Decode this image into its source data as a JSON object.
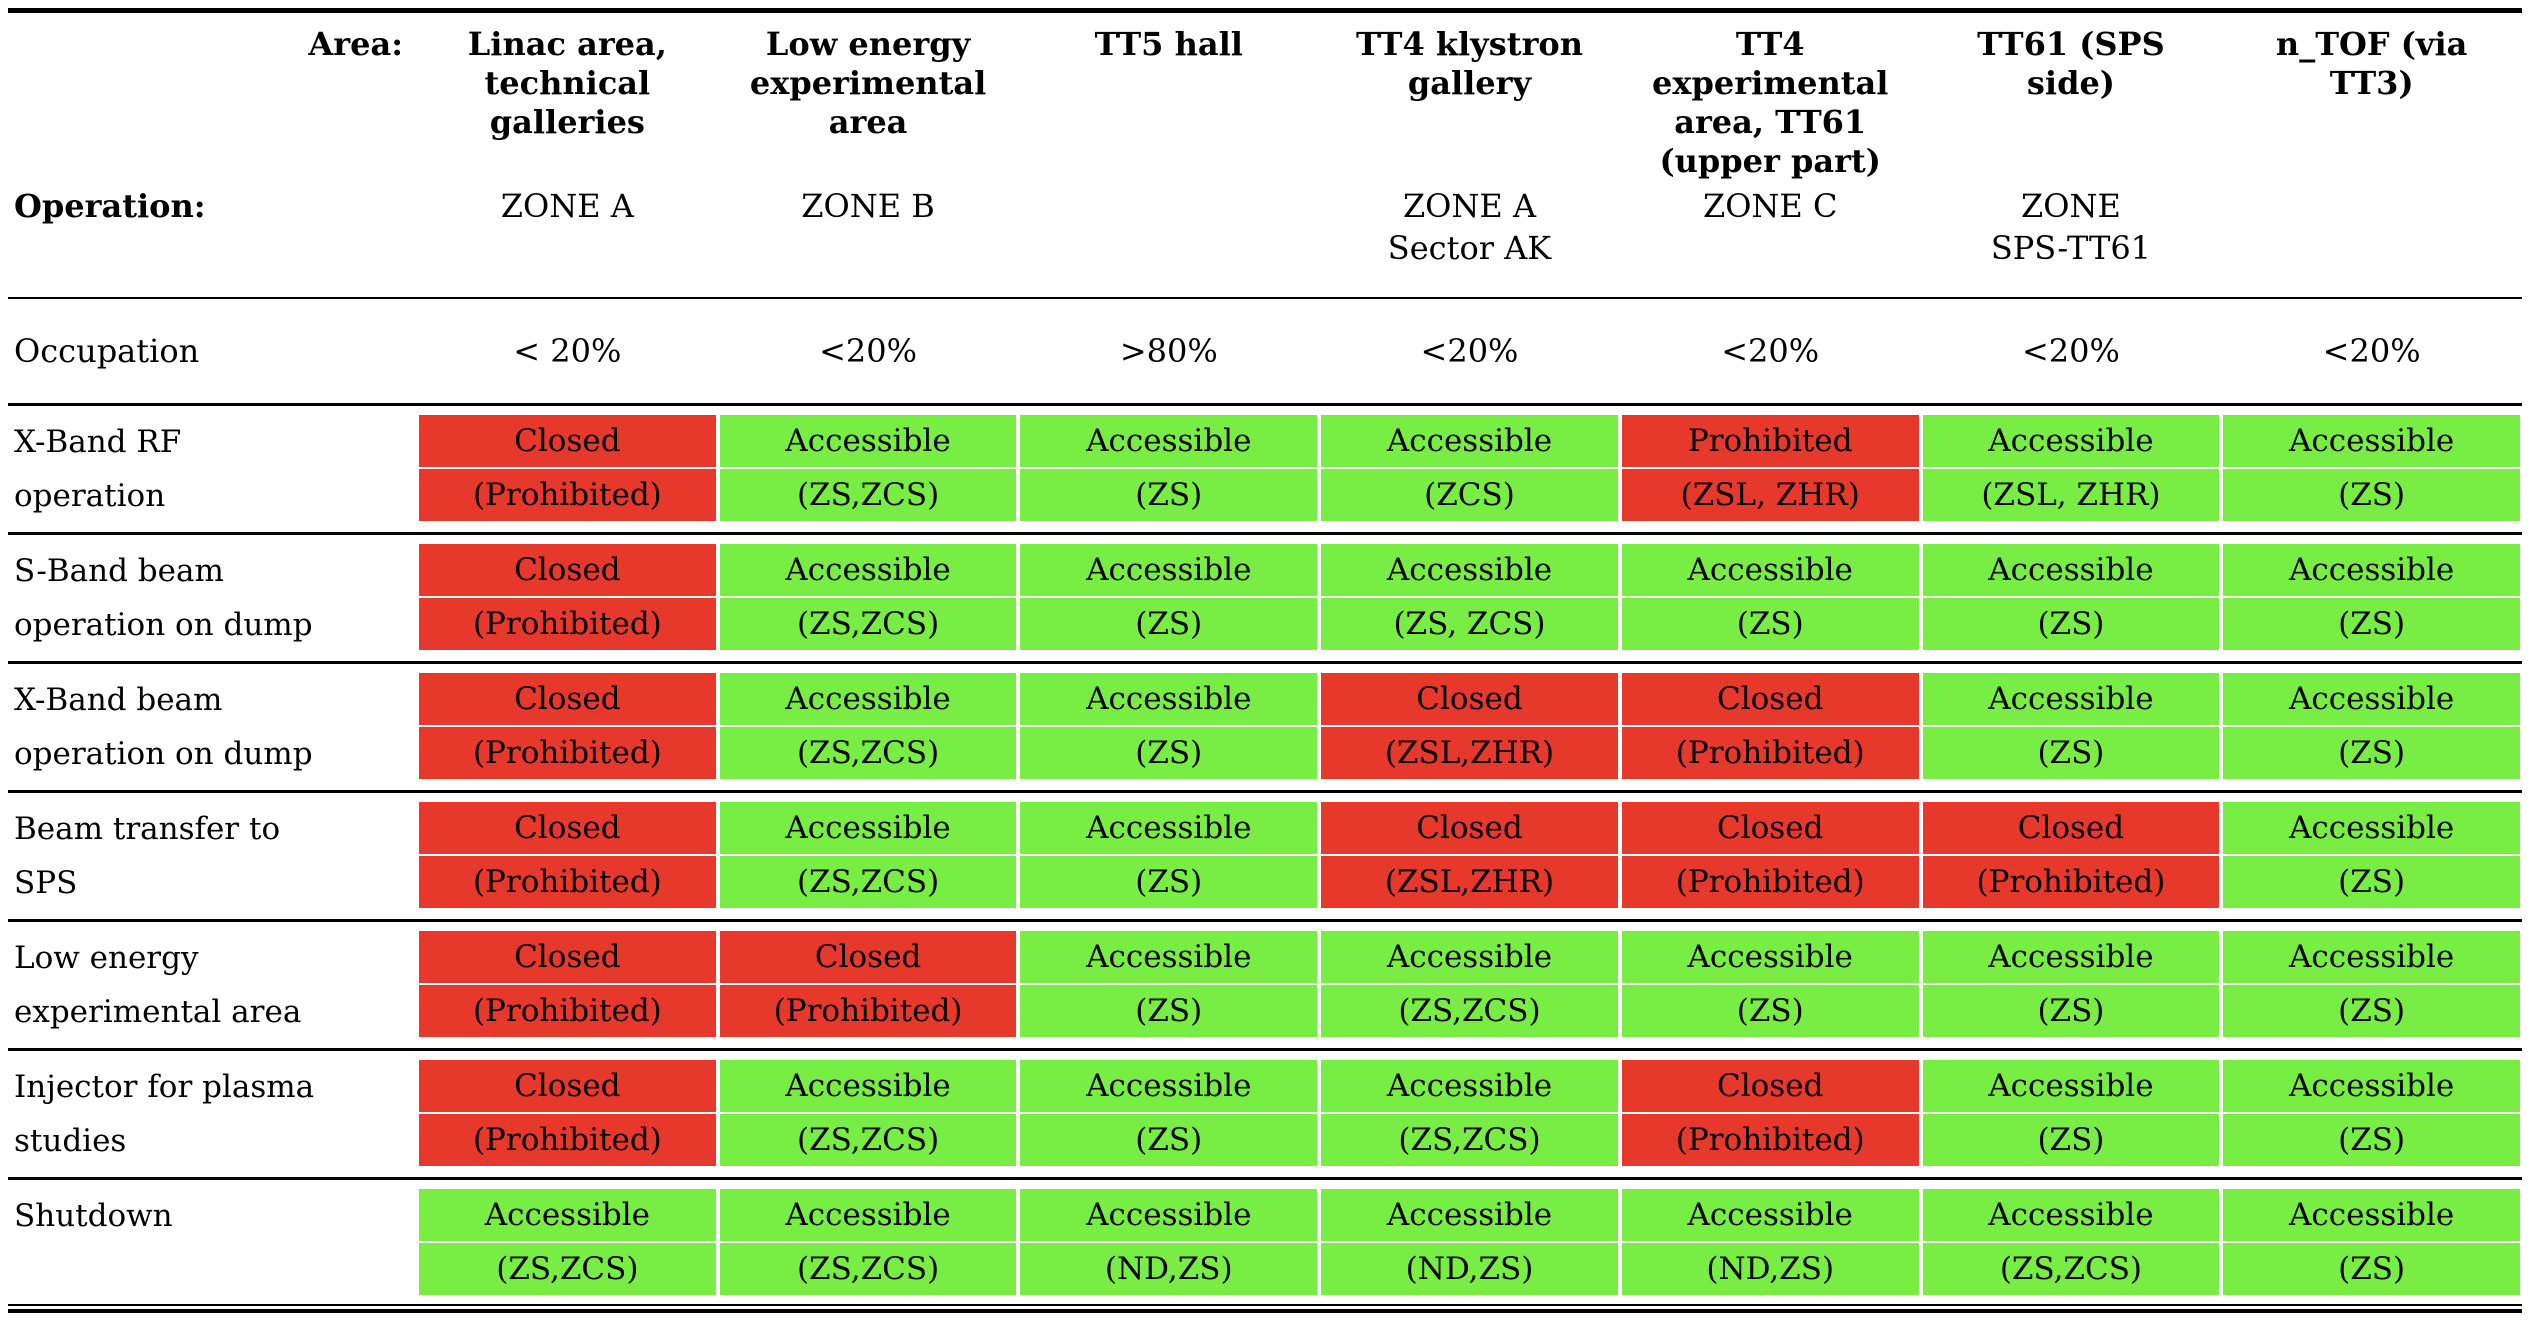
{
  "table": {
    "area_label": "Area:",
    "operation_label": "Operation:",
    "occupation_label": "Occupation",
    "colors": {
      "red": "#e6392b",
      "green": "#78ee45"
    },
    "columns": [
      {
        "area": "Linac area,\ntechnical\ngalleries",
        "zone": "ZONE A"
      },
      {
        "area": "Low energy\nexperimental\narea",
        "zone": "ZONE B"
      },
      {
        "area": "TT5 hall",
        "zone": ""
      },
      {
        "area": "TT4 klystron\ngallery",
        "zone": "ZONE A\nSector AK"
      },
      {
        "area": "TT4\nexperimental\narea, TT61\n(upper part)",
        "zone": "ZONE C"
      },
      {
        "area": "TT61 (SPS\nside)",
        "zone": "ZONE\nSPS-TT61"
      },
      {
        "area": "n_TOF (via\nTT3)",
        "zone": ""
      }
    ],
    "occupation_values": [
      "< 20%",
      "<20%",
      ">80%",
      "<20%",
      "<20%",
      "<20%",
      "<20%"
    ],
    "rows": [
      {
        "label": "X-Band RF\noperation",
        "cells": [
          {
            "line1": "Closed",
            "line2": "(Prohibited)",
            "color": "red"
          },
          {
            "line1": "Accessible",
            "line2": "(ZS,ZCS)",
            "color": "green"
          },
          {
            "line1": "Accessible",
            "line2": "(ZS)",
            "color": "green"
          },
          {
            "line1": "Accessible",
            "line2": "(ZCS)",
            "color": "green"
          },
          {
            "line1": "Prohibited",
            "line2": "(ZSL, ZHR)",
            "color": "red"
          },
          {
            "line1": "Accessible",
            "line2": "(ZSL, ZHR)",
            "color": "green"
          },
          {
            "line1": "Accessible",
            "line2": "(ZS)",
            "color": "green"
          }
        ]
      },
      {
        "label": "S-Band beam\noperation on dump",
        "cells": [
          {
            "line1": "Closed",
            "line2": "(Prohibited)",
            "color": "red"
          },
          {
            "line1": "Accessible",
            "line2": "(ZS,ZCS)",
            "color": "green"
          },
          {
            "line1": "Accessible",
            "line2": "(ZS)",
            "color": "green"
          },
          {
            "line1": "Accessible",
            "line2": "(ZS, ZCS)",
            "color": "green"
          },
          {
            "line1": "Accessible",
            "line2": "(ZS)",
            "color": "green"
          },
          {
            "line1": "Accessible",
            "line2": "(ZS)",
            "color": "green"
          },
          {
            "line1": "Accessible",
            "line2": "(ZS)",
            "color": "green"
          }
        ]
      },
      {
        "label": "X-Band beam\noperation on dump",
        "cells": [
          {
            "line1": "Closed",
            "line2": "(Prohibited)",
            "color": "red"
          },
          {
            "line1": "Accessible",
            "line2": "(ZS,ZCS)",
            "color": "green"
          },
          {
            "line1": "Accessible",
            "line2": "(ZS)",
            "color": "green"
          },
          {
            "line1": "Closed",
            "line2": "(ZSL,ZHR)",
            "color": "red"
          },
          {
            "line1": "Closed",
            "line2": "(Prohibited)",
            "color": "red"
          },
          {
            "line1": "Accessible",
            "line2": "(ZS)",
            "color": "green"
          },
          {
            "line1": "Accessible",
            "line2": "(ZS)",
            "color": "green"
          }
        ]
      },
      {
        "label": "Beam transfer to\nSPS",
        "cells": [
          {
            "line1": "Closed",
            "line2": "(Prohibited)",
            "color": "red"
          },
          {
            "line1": "Accessible",
            "line2": "(ZS,ZCS)",
            "color": "green"
          },
          {
            "line1": "Accessible",
            "line2": "(ZS)",
            "color": "green"
          },
          {
            "line1": "Closed",
            "line2": "(ZSL,ZHR)",
            "color": "red"
          },
          {
            "line1": "Closed",
            "line2": "(Prohibited)",
            "color": "red"
          },
          {
            "line1": "Closed",
            "line2": "(Prohibited)",
            "color": "red"
          },
          {
            "line1": "Accessible",
            "line2": "(ZS)",
            "color": "green"
          }
        ]
      },
      {
        "label": "Low energy\nexperimental area",
        "cells": [
          {
            "line1": "Closed",
            "line2": "(Prohibited)",
            "color": "red"
          },
          {
            "line1": "Closed",
            "line2": "(Prohibited)",
            "color": "red"
          },
          {
            "line1": "Accessible",
            "line2": "(ZS)",
            "color": "green"
          },
          {
            "line1": "Accessible",
            "line2": "(ZS,ZCS)",
            "color": "green"
          },
          {
            "line1": "Accessible",
            "line2": "(ZS)",
            "color": "green"
          },
          {
            "line1": "Accessible",
            "line2": "(ZS)",
            "color": "green"
          },
          {
            "line1": "Accessible",
            "line2": "(ZS)",
            "color": "green"
          }
        ]
      },
      {
        "label": "Injector for plasma\nstudies",
        "cells": [
          {
            "line1": "Closed",
            "line2": "(Prohibited)",
            "color": "red"
          },
          {
            "line1": "Accessible",
            "line2": "(ZS,ZCS)",
            "color": "green"
          },
          {
            "line1": "Accessible",
            "line2": "(ZS)",
            "color": "green"
          },
          {
            "line1": "Accessible",
            "line2": "(ZS,ZCS)",
            "color": "green"
          },
          {
            "line1": "Closed",
            "line2": "(Prohibited)",
            "color": "red"
          },
          {
            "line1": "Accessible",
            "line2": "(ZS)",
            "color": "green"
          },
          {
            "line1": "Accessible",
            "line2": "(ZS)",
            "color": "green"
          }
        ]
      },
      {
        "label": "Shutdown",
        "cells": [
          {
            "line1": "Accessible",
            "line2": "(ZS,ZCS)",
            "color": "green"
          },
          {
            "line1": "Accessible",
            "line2": "(ZS,ZCS)",
            "color": "green"
          },
          {
            "line1": "Accessible",
            "line2": "(ND,ZS)",
            "color": "green"
          },
          {
            "line1": "Accessible",
            "line2": "(ND,ZS)",
            "color": "green"
          },
          {
            "line1": "Accessible",
            "line2": "(ND,ZS)",
            "color": "green"
          },
          {
            "line1": "Accessible",
            "line2": "(ZS,ZCS)",
            "color": "green"
          },
          {
            "line1": "Accessible",
            "line2": "(ZS)",
            "color": "green"
          }
        ]
      }
    ]
  }
}
